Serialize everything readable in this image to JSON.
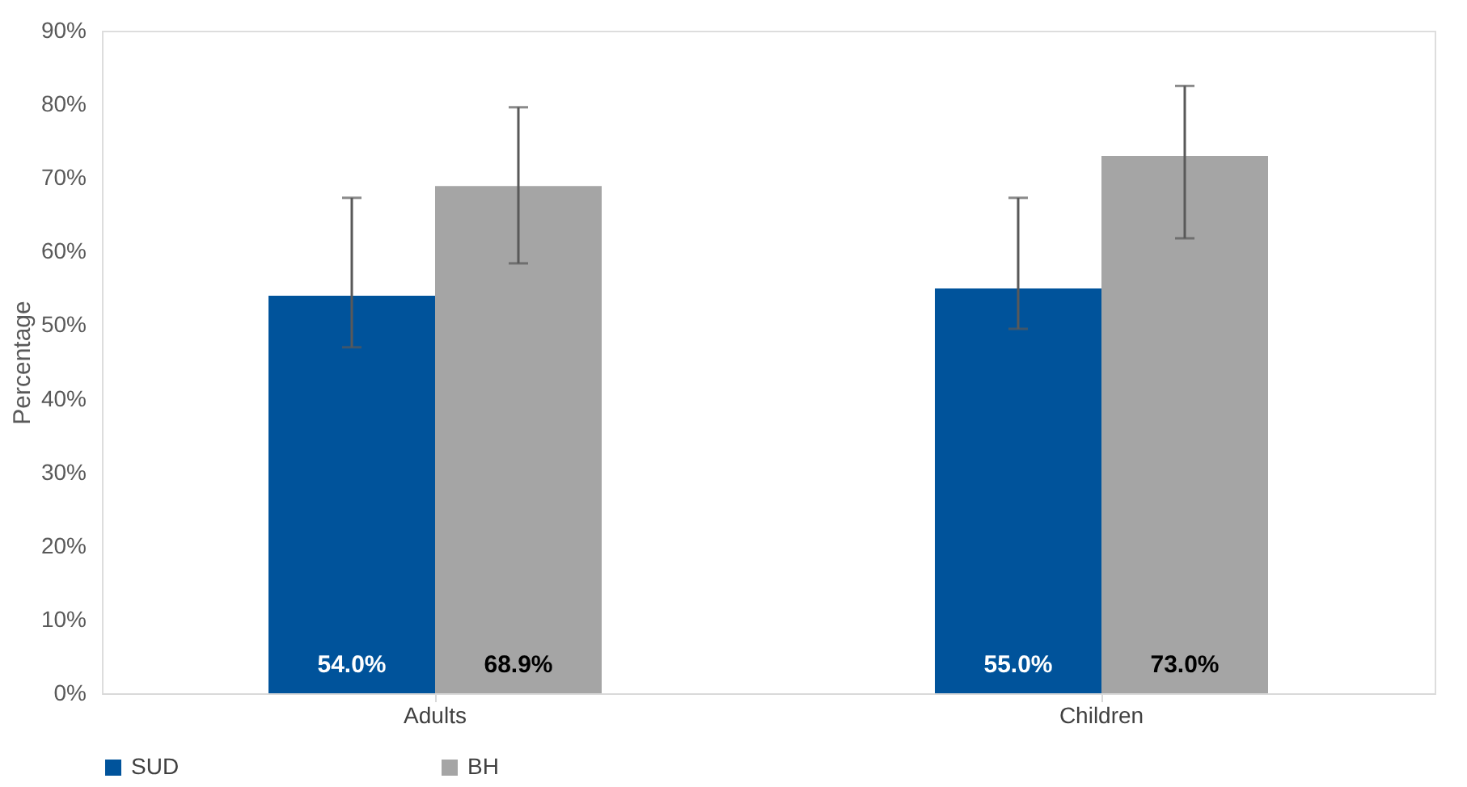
{
  "chart_data": {
    "type": "bar",
    "ylabel": "Percentage",
    "categories": [
      "Adults",
      "Children"
    ],
    "series": [
      {
        "name": "SUD",
        "color": "#00539b",
        "values": [
          54.0,
          55.0
        ],
        "value_labels": [
          "54.0%",
          "55.0%"
        ],
        "errors": [
          [
            47.0,
            67.3
          ],
          [
            49.5,
            67.3
          ]
        ]
      },
      {
        "name": "BH",
        "color": "#a5a5a5",
        "values": [
          68.9,
          73.0
        ],
        "value_labels": [
          "68.9%",
          "73.0%"
        ],
        "errors": [
          [
            58.4,
            79.6
          ],
          [
            61.8,
            82.5
          ]
        ]
      }
    ],
    "ylim": [
      0,
      90
    ],
    "yticks": [
      {
        "value": 0,
        "label": "0%"
      },
      {
        "value": 10,
        "label": "10%"
      },
      {
        "value": 20,
        "label": "20%"
      },
      {
        "value": 30,
        "label": "30%"
      },
      {
        "value": 40,
        "label": "40%"
      },
      {
        "value": 50,
        "label": "50%"
      },
      {
        "value": 60,
        "label": "60%"
      },
      {
        "value": 70,
        "label": "70%"
      },
      {
        "value": 80,
        "label": "80%"
      },
      {
        "value": 90,
        "label": "90%"
      }
    ],
    "grid": false,
    "legend": "bottom"
  }
}
